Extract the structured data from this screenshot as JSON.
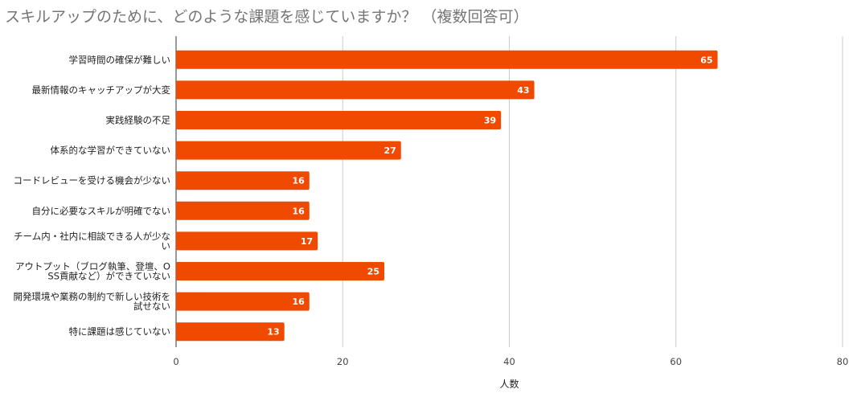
{
  "chart_data": {
    "type": "bar",
    "orientation": "horizontal",
    "title": "スキルアップのために、どのような課題を感じていますか？ （複数回答可）",
    "xlabel": "人数",
    "ylabel": "",
    "xlim": [
      0,
      80
    ],
    "xticks": [
      0,
      20,
      40,
      60,
      80
    ],
    "grid": true,
    "bar_color": "#f04a00",
    "categories": [
      [
        "学習時間の確保が難しい"
      ],
      [
        "最新情報のキャッチアップが大変"
      ],
      [
        "実践経験の不足"
      ],
      [
        "体系的な学習ができていない"
      ],
      [
        "コードレビューを受ける機会が少ない"
      ],
      [
        "自分に必要なスキルが明確でない"
      ],
      [
        "チーム内・社内に相談できる人が少な",
        "い"
      ],
      [
        "アウトプット（ブログ執筆、登壇、O",
        "SS貢献など）ができていない"
      ],
      [
        "開発環境や業務の制約で新しい技術を",
        "試せない"
      ],
      [
        "特に課題は感じていない"
      ]
    ],
    "values": [
      65,
      43,
      39,
      27,
      16,
      16,
      17,
      25,
      16,
      13
    ]
  }
}
